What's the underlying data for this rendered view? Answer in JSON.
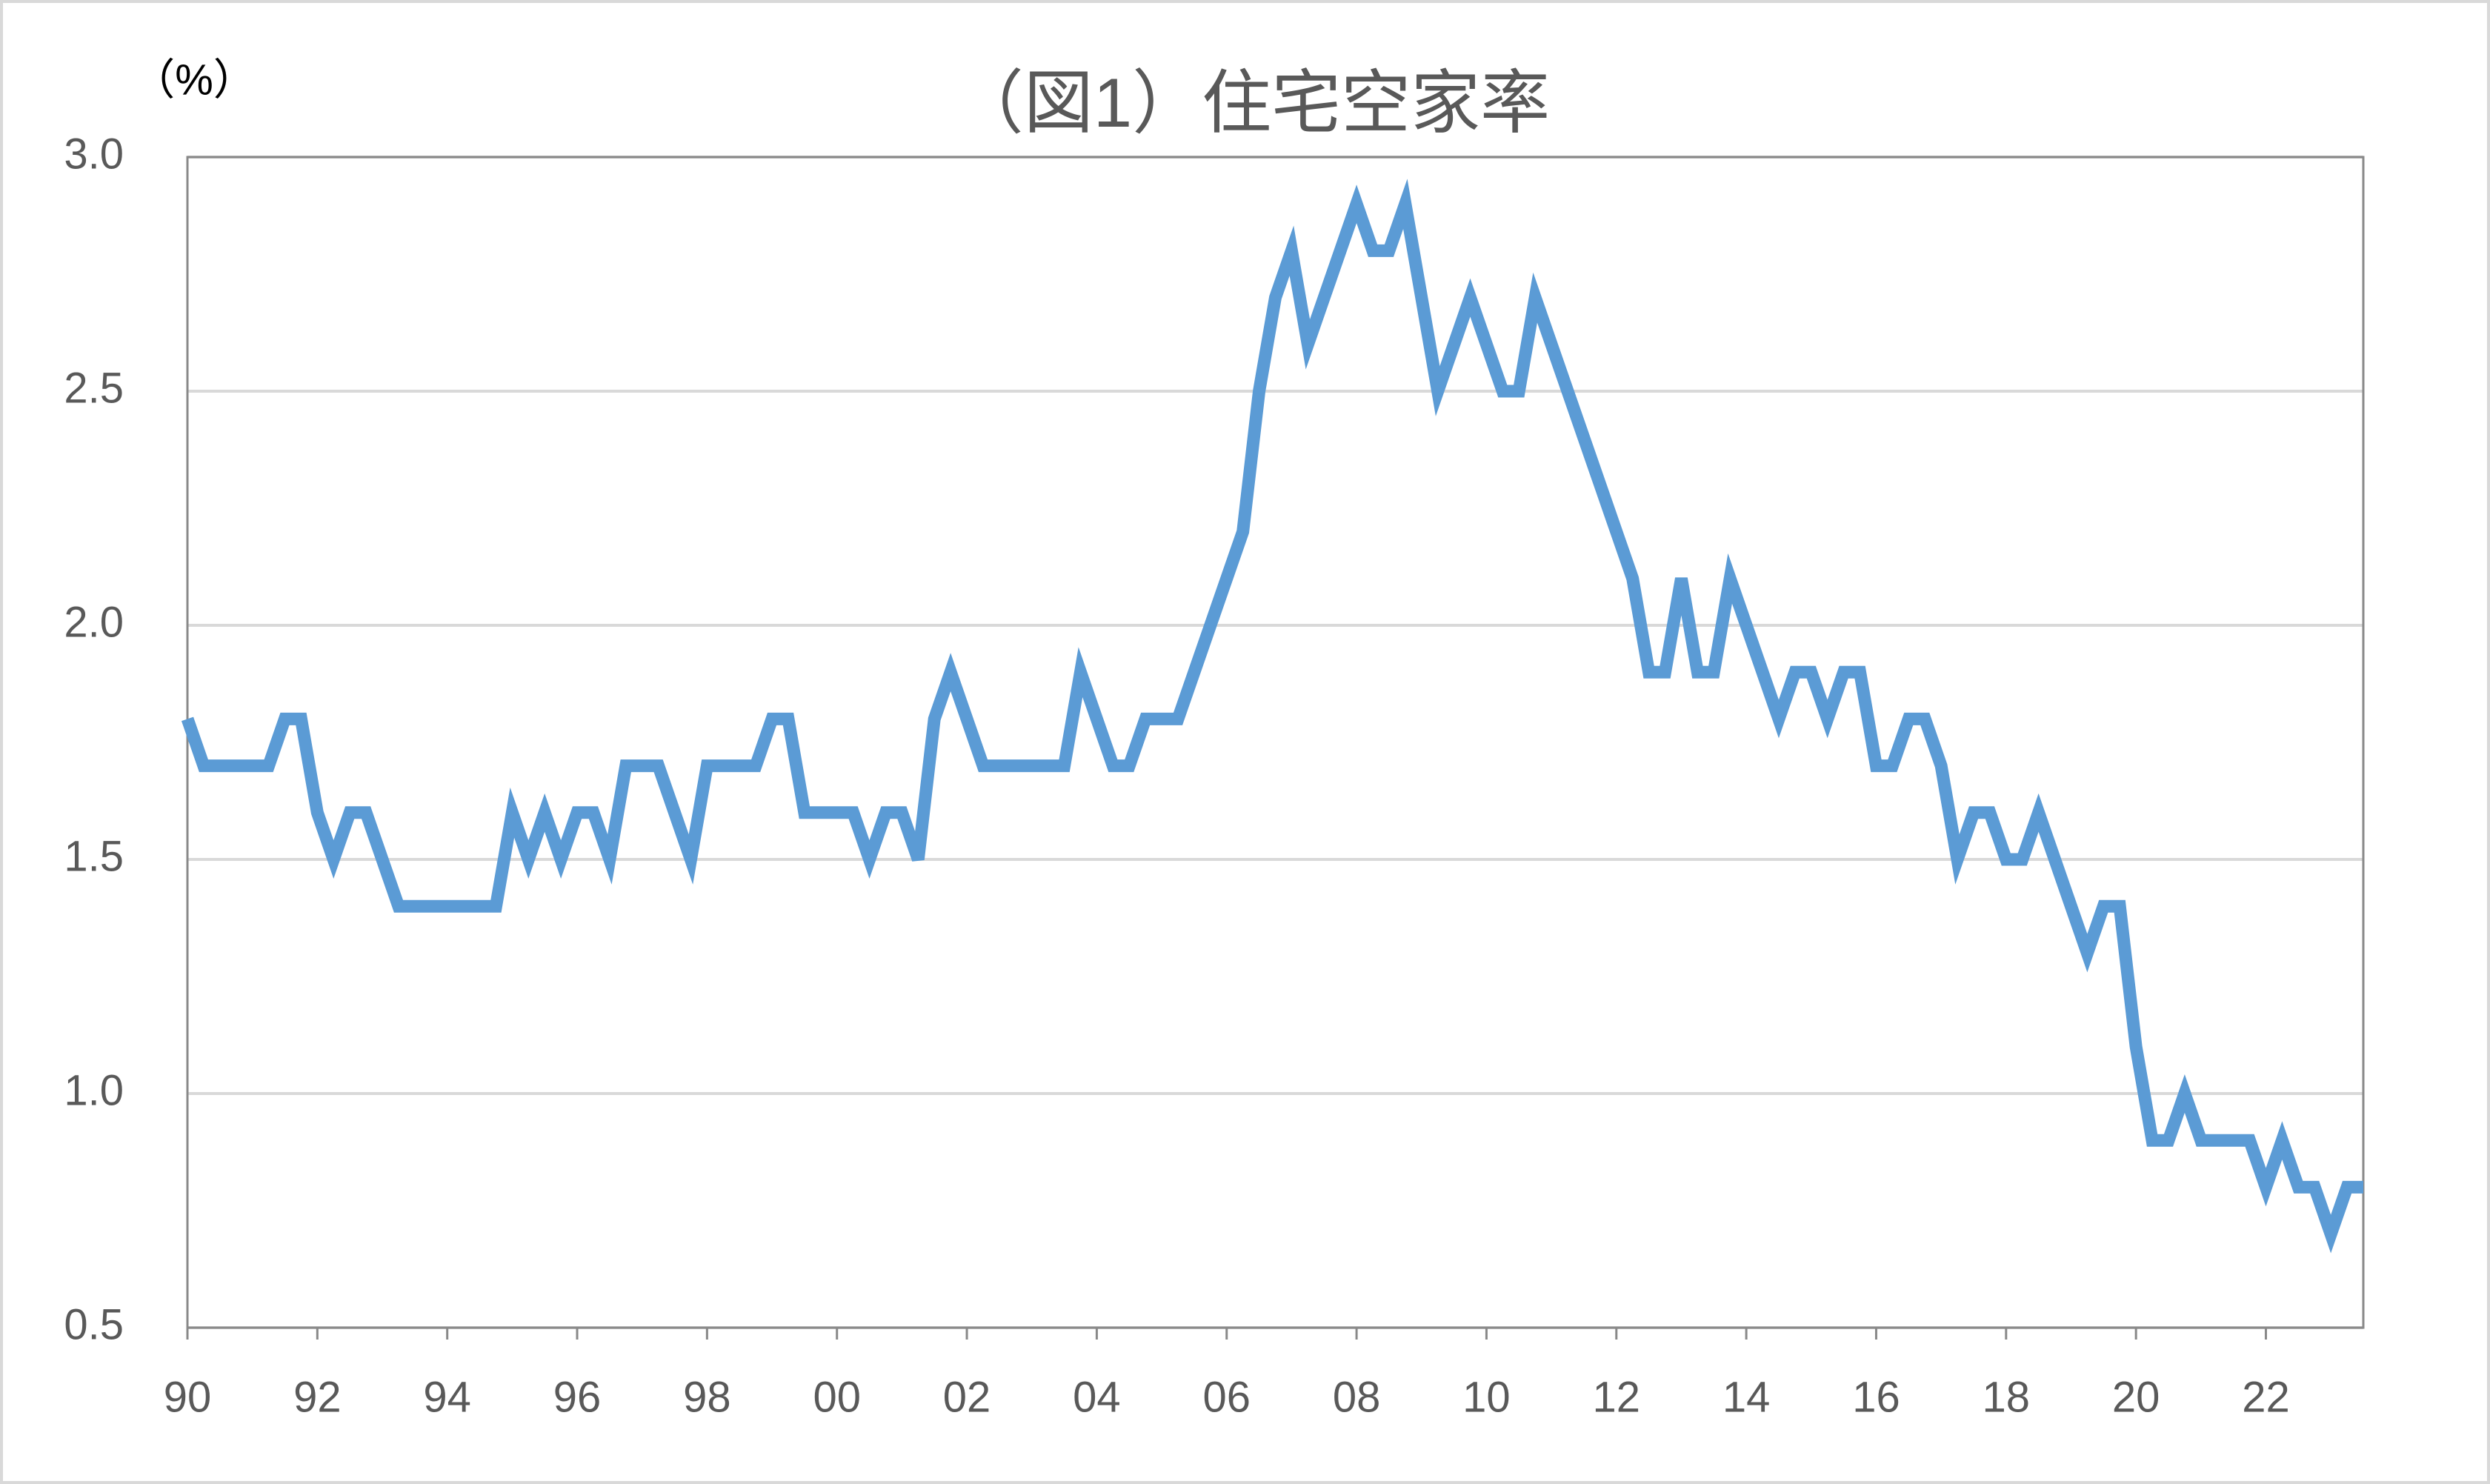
{
  "chart_data": {
    "type": "line",
    "title": "（図1）住宅空家率",
    "y_label": "（%）",
    "categories": [
      "90",
      null,
      null,
      null,
      null,
      null,
      null,
      null,
      "92",
      null,
      null,
      null,
      null,
      null,
      null,
      null,
      "94",
      null,
      null,
      null,
      null,
      null,
      null,
      null,
      "96",
      null,
      null,
      null,
      null,
      null,
      null,
      null,
      "98",
      null,
      null,
      null,
      null,
      null,
      null,
      null,
      "00",
      null,
      null,
      null,
      null,
      null,
      null,
      null,
      "02",
      null,
      null,
      null,
      null,
      null,
      null,
      null,
      "04",
      null,
      null,
      null,
      null,
      null,
      null,
      null,
      "06",
      null,
      null,
      null,
      null,
      null,
      null,
      null,
      "08",
      null,
      null,
      null,
      null,
      null,
      null,
      null,
      "10",
      null,
      null,
      null,
      null,
      null,
      null,
      null,
      "12",
      null,
      null,
      null,
      null,
      null,
      null,
      null,
      "14",
      null,
      null,
      null,
      null,
      null,
      null,
      null,
      "16",
      null,
      null,
      null,
      null,
      null,
      null,
      null,
      "18",
      null,
      null,
      null,
      null,
      null,
      null,
      null,
      "20",
      null,
      null,
      null,
      null,
      null,
      null,
      null,
      "22",
      null,
      null,
      null,
      null,
      null,
      null
    ],
    "series": [
      {
        "color": "#5b9bd5",
        "values": [
          1.8,
          1.7,
          1.7,
          1.7,
          1.7,
          1.7,
          1.8,
          1.8,
          1.6,
          1.5,
          1.6,
          1.6,
          1.5,
          1.4,
          1.4,
          1.4,
          1.4,
          1.4,
          1.4,
          1.4,
          1.6,
          1.5,
          1.6,
          1.5,
          1.6,
          1.6,
          1.5,
          1.7,
          1.7,
          1.7,
          1.6,
          1.5,
          1.7,
          1.7,
          1.7,
          1.7,
          1.8,
          1.8,
          1.6,
          1.6,
          1.6,
          1.6,
          1.5,
          1.6,
          1.6,
          1.5,
          1.8,
          1.9,
          1.8,
          1.7,
          1.7,
          1.7,
          1.7,
          1.7,
          1.7,
          1.9,
          1.8,
          1.7,
          1.7,
          1.8,
          1.8,
          1.8,
          1.9,
          2.0,
          2.1,
          2.2,
          2.5,
          2.7,
          2.8,
          2.6,
          2.7,
          2.8,
          2.9,
          2.8,
          2.8,
          2.9,
          2.7,
          2.5,
          2.6,
          2.7,
          2.6,
          2.5,
          2.5,
          2.7,
          2.6,
          2.5,
          2.4,
          2.3,
          2.2,
          2.1,
          1.9,
          1.9,
          2.1,
          1.9,
          1.9,
          2.1,
          2.0,
          1.9,
          1.8,
          1.9,
          1.9,
          1.8,
          1.9,
          1.9,
          1.7,
          1.7,
          1.8,
          1.8,
          1.7,
          1.5,
          1.6,
          1.6,
          1.5,
          1.5,
          1.6,
          1.5,
          1.4,
          1.3,
          1.4,
          1.4,
          1.1,
          0.9,
          0.9,
          1.0,
          0.9,
          0.9,
          0.9,
          0.9,
          0.8,
          0.9,
          0.8,
          0.8,
          0.7,
          0.8,
          0.8
        ]
      }
    ],
    "ylim": [
      0.5,
      3.0
    ],
    "yticks": [
      0.5,
      {
        "value": 1,
        "label": "1.0"
      },
      1.5,
      {
        "value": 2,
        "label": "2.0"
      },
      2.5,
      {
        "value": 3,
        "label": "3.0"
      }
    ],
    "grid": true
  }
}
